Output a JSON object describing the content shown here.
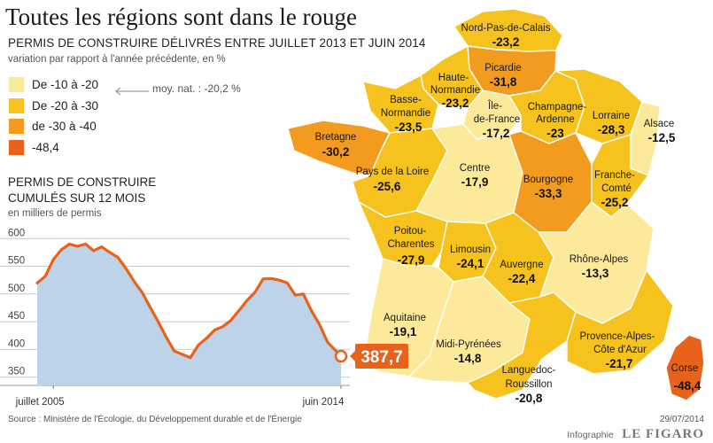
{
  "title": "Toutes les régions sont dans le rouge",
  "map": {
    "subtitle": "PERMIS DE CONSTRUIRE DÉLIVRÉS ENTRE JUILLET 2013 ET JUIN 2014",
    "note": "variation par rapport à l'année précédente, en %",
    "legend": [
      {
        "label": "De -10 à -20",
        "color": "#fcea9a"
      },
      {
        "label": "De -20 à -30",
        "color": "#f5c21e"
      },
      {
        "label": "de -30 à -40",
        "color": "#f39b1f"
      },
      {
        "label": "-48,4",
        "color": "#e8621c"
      }
    ],
    "average_note": "moy. nat. : -20,2 %"
  },
  "chart2": {
    "title": "PERMIS DE CONSTRUIRE CUMULÉS SUR 12 MOIS",
    "unit": "en milliers de permis"
  },
  "chart_data": [
    {
      "type": "map",
      "title": "PERMIS DE CONSTRUIRE DÉLIVRÉS ENTRE JUILLET 2013 ET JUIN 2014",
      "subtitle": "variation par rapport à l'année précédente, en %",
      "regions": [
        {
          "name": "Nord-Pas-de-Calais",
          "value": "-23,2",
          "color": "#f5c21e"
        },
        {
          "name": "Picardie",
          "value": "-31,8",
          "color": "#f39b1f"
        },
        {
          "name": "Haute-Normandie",
          "value": "-23,2",
          "color": "#f5c21e"
        },
        {
          "name": "Basse-Normandie",
          "value": "-23,5",
          "color": "#f5c21e"
        },
        {
          "name": "Île-de-France",
          "value": "-17,2",
          "color": "#fcea9a"
        },
        {
          "name": "Champagne-Ardenne",
          "value": "-23",
          "color": "#f5c21e"
        },
        {
          "name": "Lorraine",
          "value": "-28,3",
          "color": "#f5c21e"
        },
        {
          "name": "Alsace",
          "value": "-12,5",
          "color": "#fcea9a"
        },
        {
          "name": "Bretagne",
          "value": "-30,2",
          "color": "#f39b1f"
        },
        {
          "name": "Pays de la Loire",
          "value": "-25,6",
          "color": "#f5c21e"
        },
        {
          "name": "Centre",
          "value": "-17,9",
          "color": "#fcea9a"
        },
        {
          "name": "Bourgogne",
          "value": "-33,3",
          "color": "#f39b1f"
        },
        {
          "name": "Franche-Comté",
          "value": "-25,2",
          "color": "#f5c21e"
        },
        {
          "name": "Poitou-Charentes",
          "value": "-27,9",
          "color": "#f5c21e"
        },
        {
          "name": "Limousin",
          "value": "-24,1",
          "color": "#f5c21e"
        },
        {
          "name": "Auvergne",
          "value": "-22,4",
          "color": "#f5c21e"
        },
        {
          "name": "Rhône-Alpes",
          "value": "-13,3",
          "color": "#fcea9a"
        },
        {
          "name": "Aquitaine",
          "value": "-19,1",
          "color": "#fcea9a"
        },
        {
          "name": "Midi-Pyrénées",
          "value": "-14,8",
          "color": "#fcea9a"
        },
        {
          "name": "Languedoc-Roussillon",
          "value": "-20,8",
          "color": "#f5c21e"
        },
        {
          "name": "Provence-Alpes-Côte d'Azur",
          "value": "-21,7",
          "color": "#f5c21e"
        },
        {
          "name": "Corse",
          "value": "-48,4",
          "color": "#e8621c"
        }
      ]
    },
    {
      "type": "area",
      "title": "PERMIS DE CONSTRUIRE CUMULÉS SUR 12 MOIS",
      "ylabel": "en milliers de permis",
      "ylim": [
        335,
        610
      ],
      "yticks": [
        350,
        400,
        450,
        500,
        550,
        600
      ],
      "xtick_labels": [
        "juillet 2005",
        "juin 2014"
      ],
      "xlim": [
        "2005-01",
        "2014-06"
      ],
      "grid": true,
      "line_color": "#e8621c",
      "fill_color": "#bcd3e9",
      "last_value_label": "387,7",
      "series": [
        {
          "x": [
            "2005-01",
            "2005-04",
            "2005-07",
            "2005-10",
            "2006-01",
            "2006-04",
            "2006-07",
            "2006-10",
            "2007-01",
            "2007-04",
            "2007-07",
            "2007-10",
            "2008-01",
            "2008-04",
            "2008-07",
            "2008-10",
            "2009-01",
            "2009-04",
            "2009-07",
            "2009-10",
            "2010-01",
            "2010-04",
            "2010-07",
            "2010-10",
            "2011-01",
            "2011-04",
            "2011-07",
            "2011-10",
            "2012-01",
            "2012-04",
            "2012-07",
            "2012-10",
            "2013-01",
            "2013-04",
            "2013-07",
            "2013-10",
            "2014-01",
            "2014-04",
            "2014-06"
          ],
          "values": [
            520,
            532,
            562,
            580,
            590,
            586,
            590,
            578,
            585,
            575,
            566,
            546,
            523,
            503,
            476,
            450,
            422,
            397,
            391,
            385,
            408,
            420,
            435,
            441,
            452,
            470,
            488,
            503,
            527,
            528,
            525,
            520,
            498,
            500,
            470,
            445,
            413,
            398,
            387.7
          ]
        }
      ]
    }
  ],
  "footer": {
    "source": "Source : Ministère de l'Écologie, du Développement durable et de l'Énergie",
    "date": "29/07/2014",
    "credit_small": "Infographie",
    "credit_brand": "LE FIGARO"
  }
}
